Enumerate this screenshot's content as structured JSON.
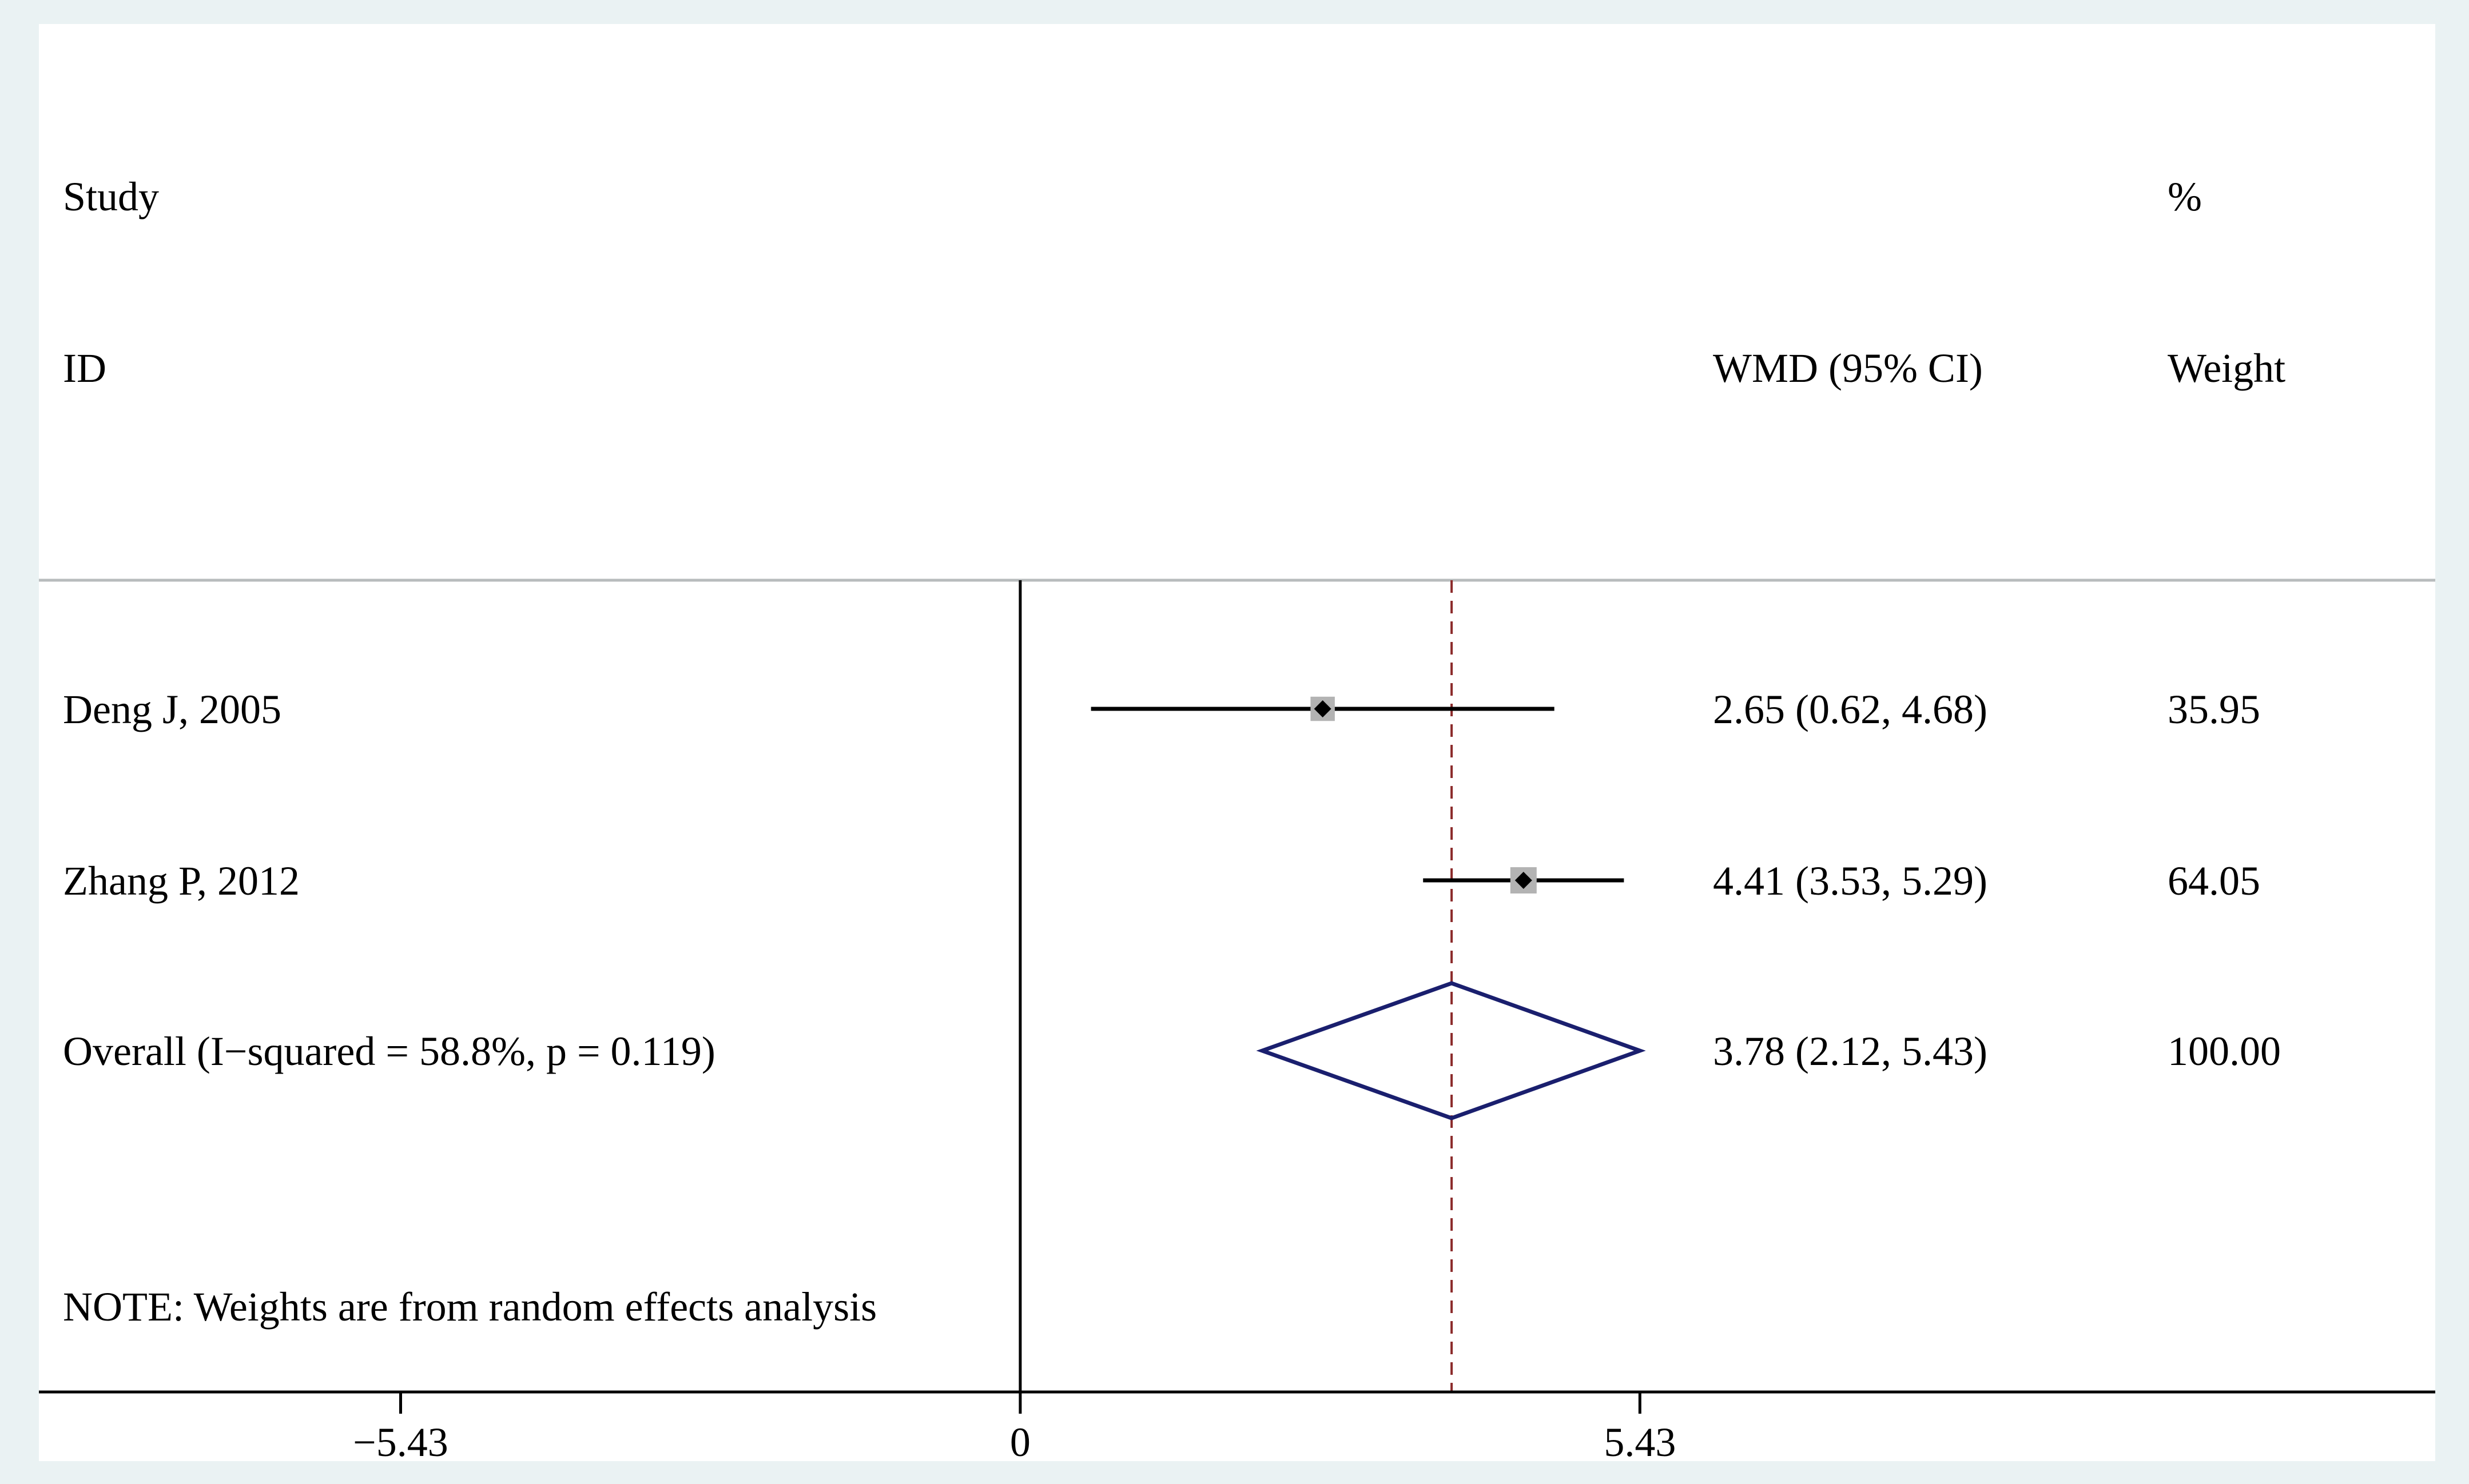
{
  "colors": {
    "outer_background": "#eaf2f3",
    "plot_background": "#ffffff",
    "header_rule": "#b8bcbd",
    "axis": "#000000",
    "ci_line": "#000000",
    "weight_box": "#b3b3b3",
    "point_marker": "#000000",
    "overall_diamond": "#1a1f6e",
    "overall_line": "#8b2a2a"
  },
  "headers": {
    "study": "Study",
    "id": "ID",
    "effect": "WMD (95% CI)",
    "percent": "%",
    "weight": "Weight"
  },
  "note": "NOTE: Weights are from random effects analysis",
  "chart_data": {
    "type": "forest",
    "measure": "WMD",
    "null_value": 0,
    "xlim": [
      -8.6,
      12.4
    ],
    "x_ticks": [
      -5.43,
      0,
      5.43
    ],
    "x_tick_labels": [
      "−5.43",
      "0",
      "5.43"
    ],
    "studies": [
      {
        "label": "Deng J, 2005",
        "estimate": 2.65,
        "lower": 0.62,
        "upper": 4.68,
        "ci_text": "2.65 (0.62, 4.68)",
        "weight": 35.95,
        "weight_text": "35.95"
      },
      {
        "label": "Zhang P, 2012",
        "estimate": 4.41,
        "lower": 3.53,
        "upper": 5.29,
        "ci_text": "4.41 (3.53, 5.29)",
        "weight": 64.05,
        "weight_text": "64.05"
      }
    ],
    "overall": {
      "label": "Overall  (I−squared = 58.8%, p = 0.119)",
      "estimate": 3.78,
      "lower": 2.12,
      "upper": 5.43,
      "ci_text": "3.78 (2.12, 5.43)",
      "weight_text": "100.00"
    }
  }
}
